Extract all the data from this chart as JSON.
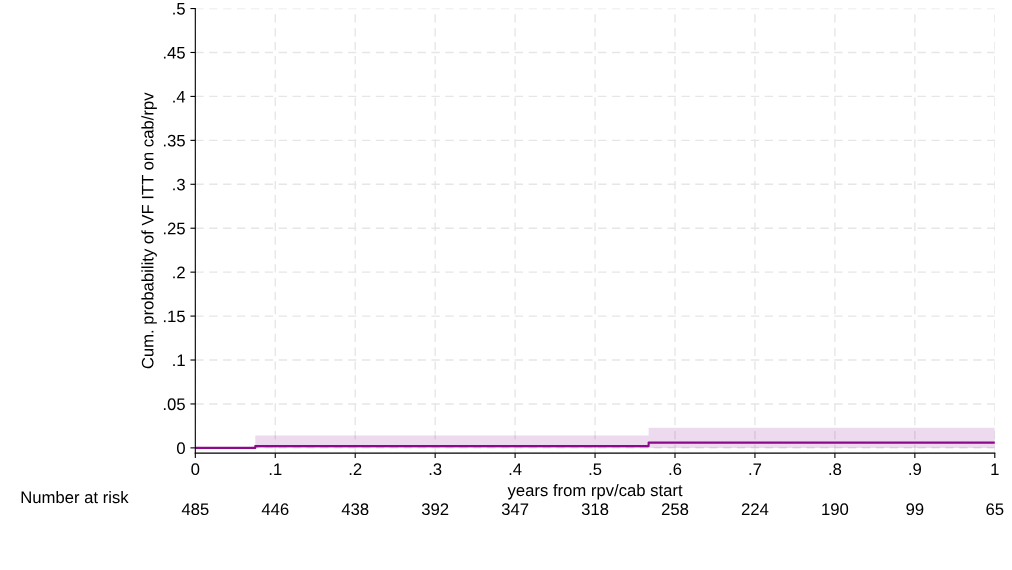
{
  "chart_data": {
    "type": "step",
    "xlabel": "years from rpv/cab start",
    "ylabel": "Cum. probability of VF ITT on cab/rpv",
    "x": [
      0,
      0.075,
      0.567,
      1
    ],
    "series": [
      {
        "color": "#8b0a8b",
        "values": [
          0,
          0.002,
          0.006,
          0.006
        ],
        "lower": [
          0,
          0,
          0,
          0
        ],
        "upper": [
          0,
          0.014,
          0.023,
          0.023
        ]
      }
    ],
    "xlim": [
      0,
      1
    ],
    "ylim": [
      -0.006,
      0.5
    ],
    "xticks": [
      0,
      {
        "value": 0.1,
        "label": ".1"
      },
      {
        "value": 0.2,
        "label": ".2"
      },
      {
        "value": 0.3,
        "label": ".3"
      },
      {
        "value": 0.4,
        "label": ".4"
      },
      {
        "value": 0.5,
        "label": ".5"
      },
      {
        "value": 0.6,
        "label": ".6"
      },
      {
        "value": 0.7,
        "label": ".7"
      },
      {
        "value": 0.8,
        "label": ".8"
      },
      {
        "value": 0.9,
        "label": ".9"
      },
      1
    ],
    "yticks": [
      0,
      {
        "value": 0.05,
        "label": ".05"
      },
      {
        "value": 0.1,
        "label": ".1"
      },
      {
        "value": 0.15,
        "label": ".15"
      },
      {
        "value": 0.2,
        "label": ".2"
      },
      {
        "value": 0.25,
        "label": ".25"
      },
      {
        "value": 0.3,
        "label": ".3"
      },
      {
        "value": 0.35,
        "label": ".35"
      },
      {
        "value": 0.4,
        "label": ".4"
      },
      {
        "value": 0.45,
        "label": ".45"
      },
      {
        "value": 0.5,
        "label": ".5"
      }
    ],
    "grid": true,
    "legend": false,
    "annotations": [
      "Number at risk",
      "485",
      "446",
      "438",
      "392",
      "347",
      "318",
      "258",
      "224",
      "190",
      "99",
      "65"
    ]
  }
}
